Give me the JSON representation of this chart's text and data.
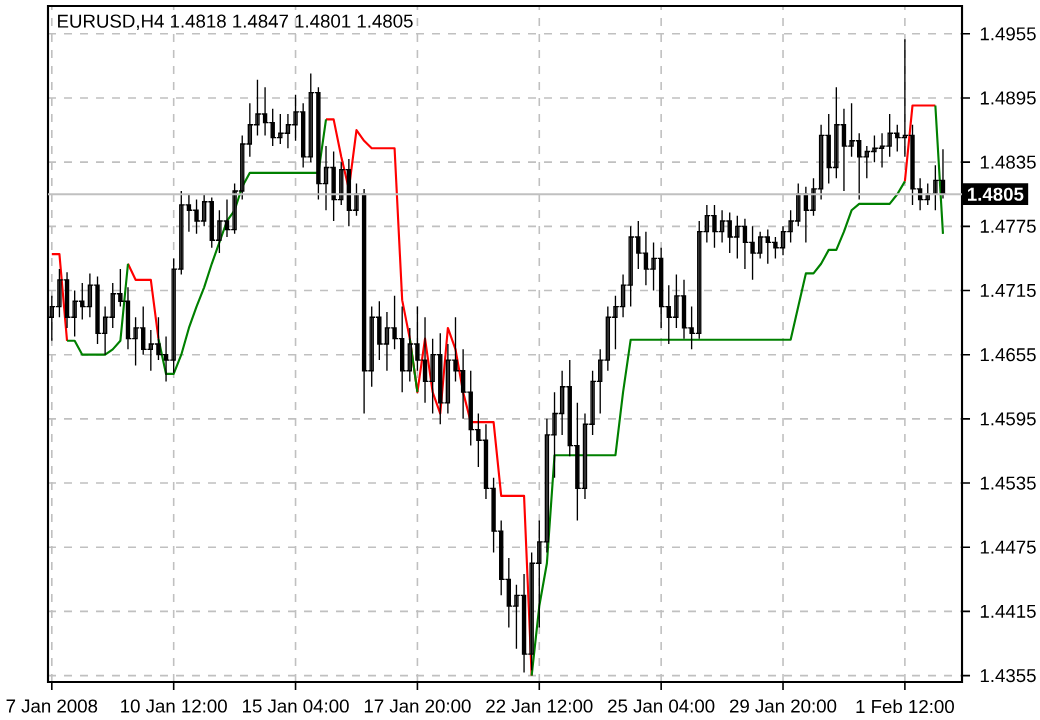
{
  "chart_data": {
    "type": "candlestick",
    "title": "EURUSD,H4  1.4818 1.4847 1.4801 1.4805",
    "color": "#000000",
    "categories": [
      "7 Jan 2008",
      null,
      null,
      null,
      null,
      null,
      null,
      null,
      null,
      null,
      null,
      null,
      null,
      null,
      null,
      null,
      "10 Jan 12:00",
      null,
      null,
      null,
      null,
      null,
      null,
      null,
      null,
      null,
      null,
      null,
      null,
      null,
      null,
      null,
      "15 Jan 04:00",
      null,
      null,
      null,
      null,
      null,
      null,
      null,
      null,
      null,
      null,
      null,
      null,
      null,
      null,
      null,
      "17 Jan 20:00",
      null,
      null,
      null,
      null,
      null,
      null,
      null,
      null,
      null,
      null,
      null,
      null,
      null,
      null,
      null,
      "22 Jan 12:00",
      null,
      null,
      null,
      null,
      null,
      null,
      null,
      null,
      null,
      null,
      null,
      null,
      null,
      null,
      null,
      "25 Jan 04:00",
      null,
      null,
      null,
      null,
      null,
      null,
      null,
      null,
      null,
      null,
      null,
      null,
      null,
      null,
      null,
      "29 Jan 20:00",
      null,
      null,
      null,
      null,
      null,
      null,
      null,
      null,
      null,
      null,
      null,
      null,
      null,
      null,
      null,
      "1 Feb 12:00",
      null,
      null,
      null,
      null,
      null
    ],
    "ohlc": [
      [
        1.469,
        1.471,
        1.4668,
        1.47
      ],
      [
        1.47,
        1.4735,
        1.469,
        1.4725
      ],
      [
        1.4725,
        1.4732,
        1.468,
        1.469
      ],
      [
        1.469,
        1.4715,
        1.4672,
        1.4705
      ],
      [
        1.4705,
        1.4722,
        1.4688,
        1.47
      ],
      [
        1.47,
        1.4731,
        1.469,
        1.472
      ],
      [
        1.472,
        1.4728,
        1.4665,
        1.4675
      ],
      [
        1.4675,
        1.47,
        1.4655,
        1.469
      ],
      [
        1.469,
        1.4722,
        1.468,
        1.4712
      ],
      [
        1.4712,
        1.4735,
        1.47,
        1.4705
      ],
      [
        1.4705,
        1.4718,
        1.466,
        1.467
      ],
      [
        1.467,
        1.469,
        1.4645,
        1.468
      ],
      [
        1.468,
        1.47,
        1.4655,
        1.466
      ],
      [
        1.466,
        1.4678,
        1.464,
        1.4665
      ],
      [
        1.4665,
        1.469,
        1.465,
        1.4655
      ],
      [
        1.4655,
        1.4672,
        1.463,
        1.465
      ],
      [
        1.465,
        1.4745,
        1.4638,
        1.4735
      ],
      [
        1.4735,
        1.4808,
        1.473,
        1.4795
      ],
      [
        1.4795,
        1.4805,
        1.477,
        1.479
      ],
      [
        1.479,
        1.48,
        1.4768,
        1.478
      ],
      [
        1.478,
        1.4805,
        1.4775,
        1.4798
      ],
      [
        1.4798,
        1.4802,
        1.4755,
        1.4762
      ],
      [
        1.4762,
        1.479,
        1.475,
        1.478
      ],
      [
        1.478,
        1.48,
        1.4765,
        1.4772
      ],
      [
        1.4772,
        1.4815,
        1.4768,
        1.4808
      ],
      [
        1.4808,
        1.486,
        1.48,
        1.4852
      ],
      [
        1.4852,
        1.489,
        1.484,
        1.487
      ],
      [
        1.487,
        1.4912,
        1.486,
        1.488
      ],
      [
        1.488,
        1.4905,
        1.486,
        1.4872
      ],
      [
        1.4872,
        1.4885,
        1.485,
        1.4858
      ],
      [
        1.4858,
        1.488,
        1.4852,
        1.4862
      ],
      [
        1.4862,
        1.488,
        1.4848,
        1.487
      ],
      [
        1.487,
        1.4898,
        1.4855,
        1.4882
      ],
      [
        1.4882,
        1.489,
        1.483,
        1.484
      ],
      [
        1.484,
        1.4918,
        1.4835,
        1.49
      ],
      [
        1.49,
        1.4905,
        1.48,
        1.4815
      ],
      [
        1.4815,
        1.485,
        1.479,
        1.483
      ],
      [
        1.483,
        1.4845,
        1.478,
        1.48
      ],
      [
        1.48,
        1.4835,
        1.4795,
        1.4828
      ],
      [
        1.4828,
        1.4838,
        1.4775,
        1.479
      ],
      [
        1.479,
        1.4815,
        1.4785,
        1.4805
      ],
      [
        1.4805,
        1.481,
        1.46,
        1.464
      ],
      [
        1.464,
        1.47,
        1.4625,
        1.469
      ],
      [
        1.469,
        1.4705,
        1.465,
        1.4665
      ],
      [
        1.4665,
        1.4695,
        1.464,
        1.468
      ],
      [
        1.468,
        1.471,
        1.466,
        1.467
      ],
      [
        1.467,
        1.47,
        1.462,
        1.464
      ],
      [
        1.464,
        1.468,
        1.463,
        1.4665
      ],
      [
        1.4665,
        1.47,
        1.464,
        1.465
      ],
      [
        1.465,
        1.469,
        1.461,
        1.463
      ],
      [
        1.463,
        1.467,
        1.46,
        1.4655
      ],
      [
        1.4655,
        1.4675,
        1.459,
        1.461
      ],
      [
        1.461,
        1.4665,
        1.46,
        1.465
      ],
      [
        1.465,
        1.469,
        1.463,
        1.464
      ],
      [
        1.464,
        1.466,
        1.4595,
        1.462
      ],
      [
        1.462,
        1.464,
        1.457,
        1.4585
      ],
      [
        1.4585,
        1.46,
        1.455,
        1.4575
      ],
      [
        1.4575,
        1.459,
        1.452,
        1.453
      ],
      [
        1.453,
        1.454,
        1.447,
        1.449
      ],
      [
        1.449,
        1.45,
        1.443,
        1.4445
      ],
      [
        1.4445,
        1.4465,
        1.44,
        1.442
      ],
      [
        1.442,
        1.444,
        1.438,
        1.443
      ],
      [
        1.443,
        1.445,
        1.4358,
        1.4375
      ],
      [
        1.4375,
        1.447,
        1.436,
        1.446
      ],
      [
        1.446,
        1.45,
        1.44,
        1.448
      ],
      [
        1.448,
        1.4595,
        1.447,
        1.458
      ],
      [
        1.458,
        1.462,
        1.454,
        1.46
      ],
      [
        1.46,
        1.464,
        1.458,
        1.4625
      ],
      [
        1.4625,
        1.465,
        1.456,
        1.457
      ],
      [
        1.457,
        1.461,
        1.45,
        1.453
      ],
      [
        1.453,
        1.46,
        1.452,
        1.459
      ],
      [
        1.459,
        1.464,
        1.458,
        1.463
      ],
      [
        1.463,
        1.466,
        1.46,
        1.465
      ],
      [
        1.465,
        1.47,
        1.464,
        1.469
      ],
      [
        1.469,
        1.471,
        1.466,
        1.47
      ],
      [
        1.47,
        1.473,
        1.469,
        1.472
      ],
      [
        1.472,
        1.4775,
        1.47,
        1.4765
      ],
      [
        1.4765,
        1.478,
        1.4735,
        1.475
      ],
      [
        1.475,
        1.477,
        1.472,
        1.4735
      ],
      [
        1.4735,
        1.476,
        1.4715,
        1.4745
      ],
      [
        1.4745,
        1.4755,
        1.468,
        1.47
      ],
      [
        1.47,
        1.472,
        1.4665,
        1.469
      ],
      [
        1.469,
        1.473,
        1.468,
        1.471
      ],
      [
        1.471,
        1.4725,
        1.467,
        1.468
      ],
      [
        1.468,
        1.47,
        1.466,
        1.4675
      ],
      [
        1.4675,
        1.478,
        1.467,
        1.477
      ],
      [
        1.477,
        1.4795,
        1.476,
        1.4785
      ],
      [
        1.4785,
        1.4795,
        1.4755,
        1.477
      ],
      [
        1.477,
        1.479,
        1.476,
        1.478
      ],
      [
        1.478,
        1.4788,
        1.475,
        1.4765
      ],
      [
        1.4765,
        1.4785,
        1.4745,
        1.4775
      ],
      [
        1.4775,
        1.4782,
        1.4735,
        1.476
      ],
      [
        1.476,
        1.4775,
        1.4725,
        1.475
      ],
      [
        1.475,
        1.477,
        1.4745,
        1.4765
      ],
      [
        1.4765,
        1.4772,
        1.474,
        1.476
      ],
      [
        1.476,
        1.4765,
        1.4745,
        1.4755
      ],
      [
        1.4755,
        1.4775,
        1.4748,
        1.477
      ],
      [
        1.477,
        1.479,
        1.476,
        1.478
      ],
      [
        1.478,
        1.4815,
        1.4775,
        1.4805
      ],
      [
        1.4805,
        1.4812,
        1.476,
        1.479
      ],
      [
        1.479,
        1.482,
        1.4785,
        1.481
      ],
      [
        1.481,
        1.487,
        1.48,
        1.486
      ],
      [
        1.486,
        1.488,
        1.4815,
        1.483
      ],
      [
        1.483,
        1.4905,
        1.482,
        1.487
      ],
      [
        1.487,
        1.4885,
        1.4808,
        1.485
      ],
      [
        1.485,
        1.489,
        1.484,
        1.4855
      ],
      [
        1.4855,
        1.4862,
        1.48,
        1.484
      ],
      [
        1.484,
        1.485,
        1.482,
        1.4845
      ],
      [
        1.4845,
        1.486,
        1.4835,
        1.4848
      ],
      [
        1.4848,
        1.4862,
        1.483,
        1.485
      ],
      [
        1.485,
        1.488,
        1.484,
        1.4862
      ],
      [
        1.4862,
        1.487,
        1.4845,
        1.4858
      ],
      [
        1.4858,
        1.495,
        1.484,
        1.486
      ],
      [
        1.486,
        1.487,
        1.4795,
        1.481
      ],
      [
        1.481,
        1.482,
        1.479,
        1.48
      ],
      [
        1.48,
        1.4815,
        1.4795,
        1.4805
      ],
      [
        1.4805,
        1.4832,
        1.479,
        1.4818
      ],
      [
        1.4818,
        1.4847,
        1.4801,
        1.4805
      ]
    ],
    "series": [
      {
        "type": "line",
        "color": "#ff0000",
        "values": [
          1.4749,
          1.4749,
          1.4668,
          null,
          null,
          null,
          null,
          null,
          null,
          null,
          1.474,
          1.4725,
          1.4725,
          1.4725,
          1.467,
          null,
          null,
          null,
          null,
          null,
          null,
          null,
          null,
          null,
          null,
          null,
          null,
          null,
          null,
          null,
          null,
          null,
          null,
          null,
          null,
          null,
          1.4875,
          1.4875,
          1.484,
          1.481,
          1.4865,
          1.4855,
          1.4848,
          1.4848,
          1.4848,
          1.4848,
          1.4706,
          1.467,
          1.462,
          1.467,
          1.462,
          1.46,
          1.468,
          1.466,
          1.462,
          1.4592,
          1.4592,
          1.4592,
          1.4592,
          1.4523,
          1.4523,
          1.4523,
          1.4523,
          1.4355,
          null,
          null,
          null,
          null,
          null,
          null,
          null,
          null,
          null,
          null,
          null,
          null,
          null,
          null,
          null,
          null,
          null,
          null,
          null,
          null,
          null,
          null,
          null,
          null,
          null,
          null,
          null,
          null,
          null,
          null,
          null,
          null,
          null,
          null,
          null,
          null,
          null,
          null,
          null,
          null,
          null,
          null,
          null,
          null,
          null,
          null,
          null,
          null,
          1.4817,
          1.4888,
          1.4888,
          1.4888,
          1.4888,
          null
        ]
      },
      {
        "type": "line",
        "color": "#008000",
        "values": [
          null,
          null,
          1.4668,
          1.4668,
          1.4655,
          1.4655,
          1.4655,
          1.4655,
          1.466,
          1.4668,
          1.474,
          null,
          null,
          null,
          1.467,
          1.4637,
          1.4637,
          1.4655,
          1.468,
          1.47,
          1.4718,
          1.474,
          1.476,
          1.478,
          1.479,
          1.4812,
          1.4825,
          1.4825,
          1.4825,
          1.4825,
          1.4825,
          1.4825,
          1.4825,
          1.4825,
          1.4825,
          1.4825,
          1.4875,
          null,
          null,
          null,
          null,
          null,
          null,
          null,
          null,
          null,
          null,
          1.467,
          1.462,
          null,
          null,
          null,
          null,
          null,
          null,
          null,
          null,
          null,
          null,
          null,
          null,
          null,
          null,
          1.4355,
          1.442,
          1.446,
          1.4561,
          1.4561,
          1.4561,
          1.4561,
          1.4561,
          1.4561,
          1.4561,
          1.4561,
          1.4561,
          1.462,
          1.4669,
          1.4669,
          1.4669,
          1.4669,
          1.4669,
          1.4669,
          1.4669,
          1.4669,
          1.4669,
          1.4669,
          1.4669,
          1.4669,
          1.4669,
          1.4669,
          1.4669,
          1.4669,
          1.4669,
          1.4669,
          1.4669,
          1.4669,
          1.4669,
          1.4669,
          1.47,
          1.4731,
          1.4731,
          1.474,
          1.4753,
          1.4753,
          1.477,
          1.479,
          1.4796,
          1.4796,
          1.4796,
          1.4796,
          1.4796,
          1.4805,
          1.4817,
          null,
          null,
          null,
          1.4888,
          1.4768
        ]
      }
    ],
    "ylim": [
      1.4349,
      1.4981
    ],
    "yticks": [
      1.4355,
      1.4415,
      1.4475,
      1.4535,
      1.4595,
      1.4655,
      1.4715,
      1.4775,
      1.4835,
      1.4895,
      1.4955
    ],
    "grid": true,
    "ref_lines": [
      {
        "axis": "y",
        "value": 1.4805,
        "label": "1.4805",
        "color": "#c0c0c0"
      }
    ]
  }
}
